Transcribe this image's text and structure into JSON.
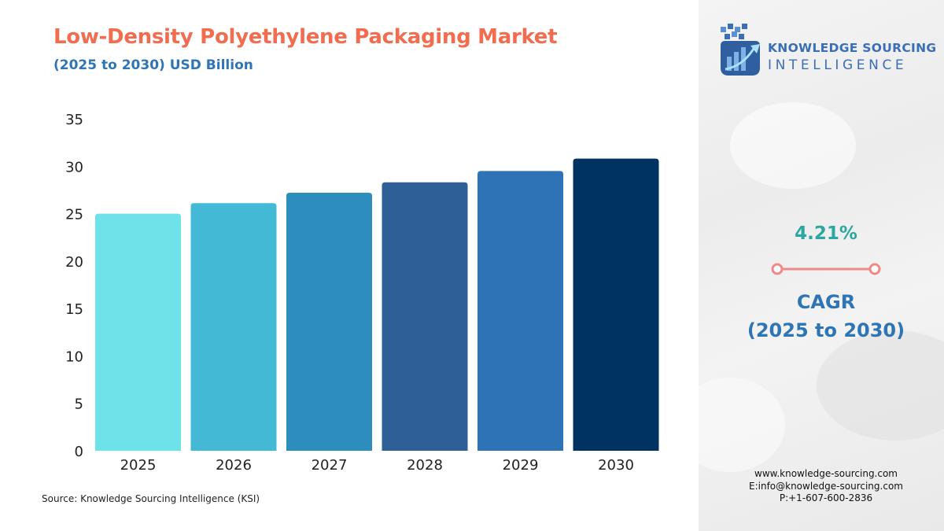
{
  "header": {
    "title": "Low-Density Polyethylene Packaging Market",
    "subtitle": "(2025 to 2030) USD Billion"
  },
  "source": "Source: Knowledge Sourcing Intelligence (KSI)",
  "logo": {
    "line1": "KNOWLEDGE SOURCING",
    "line2": "INTELLIGENCE",
    "icon": "bar-growth-arrow-icon"
  },
  "cagr": {
    "value": "4.21%",
    "label": "CAGR",
    "period": "(2025 to 2030)"
  },
  "contact": {
    "website": "www.knowledge-sourcing.com",
    "email": "E:info@knowledge-sourcing.com",
    "phone": "P:+1-607-600-2836"
  },
  "colors": {
    "title": "#f26d4f",
    "subtitle": "#2e75b6",
    "cagr_value": "#2aa7a0",
    "connector": "#f08a8a",
    "bars": [
      "#6de3e9",
      "#43b9d6",
      "#2d8dbd",
      "#2e5f96",
      "#2e73b5",
      "#003262"
    ]
  },
  "chart_data": {
    "type": "bar",
    "categories": [
      "2025",
      "2026",
      "2027",
      "2028",
      "2029",
      "2030"
    ],
    "values": [
      25.0,
      26.1,
      27.2,
      28.3,
      29.5,
      30.8
    ],
    "ylim": [
      0,
      35
    ],
    "yticks": [
      0,
      5,
      10,
      15,
      20,
      25,
      30,
      35
    ],
    "grid": false,
    "legend": "none"
  }
}
